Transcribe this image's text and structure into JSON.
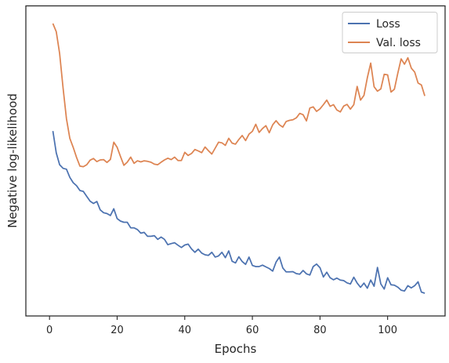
{
  "chart_data": {
    "type": "line",
    "title": "",
    "xlabel": "Epochs",
    "ylabel": "Negative log-likelihood",
    "xlim": [
      -7,
      117
    ],
    "ylim": [
      0,
      100
    ],
    "x_ticks": [
      0,
      20,
      40,
      60,
      80,
      100
    ],
    "y_ticks_shown": false,
    "grid": false,
    "legend_position": "top-right",
    "series": [
      {
        "name": "Loss",
        "color": "#4c72b0",
        "x": [
          1,
          2,
          3,
          4,
          5,
          6,
          7,
          8,
          9,
          10,
          11,
          12,
          13,
          14,
          15,
          16,
          17,
          18,
          19,
          20,
          21,
          22,
          23,
          24,
          25,
          26,
          27,
          28,
          29,
          30,
          31,
          32,
          33,
          34,
          35,
          36,
          37,
          38,
          39,
          40,
          41,
          42,
          43,
          44,
          45,
          46,
          47,
          48,
          49,
          50,
          51,
          52,
          53,
          54,
          55,
          56,
          57,
          58,
          59,
          60,
          61,
          62,
          63,
          64,
          65,
          66,
          67,
          68,
          69,
          70,
          71,
          72,
          73,
          74,
          75,
          76,
          77,
          78,
          79,
          80,
          81,
          82,
          83,
          84,
          85,
          86,
          87,
          88,
          89,
          90,
          91,
          92,
          93,
          94,
          95,
          96,
          97,
          98,
          99,
          100,
          101,
          102,
          103,
          104,
          105,
          106,
          107,
          108,
          109,
          110,
          111
        ],
        "values": [
          61.7,
          53.9,
          49.7,
          48.4,
          48.1,
          45.2,
          43.3,
          42.2,
          40.5,
          40.2,
          38.4,
          36.7,
          35.9,
          36.6,
          33.6,
          32.6,
          32.3,
          31.6,
          34.0,
          30.5,
          29.6,
          29.2,
          29.2,
          27.2,
          27.2,
          26.6,
          25.3,
          25.6,
          24.2,
          24.2,
          24.4,
          23.1,
          23.9,
          23.1,
          21.2,
          21.6,
          21.9,
          21.0,
          20.2,
          21.1,
          21.4,
          19.7,
          18.5,
          19.6,
          18.2,
          17.6,
          17.4,
          18.5,
          16.8,
          17.2,
          18.5,
          16.6,
          19.0,
          15.3,
          14.7,
          16.9,
          15.2,
          14.2,
          16.8,
          13.8,
          13.4,
          13.4,
          13.9,
          13.3,
          12.7,
          11.8,
          15.0,
          16.8,
          12.9,
          11.5,
          11.5,
          11.6,
          10.9,
          10.7,
          12.0,
          10.8,
          10.4,
          13.4,
          14.3,
          13.0,
          9.7,
          11.4,
          9.4,
          8.7,
          9.3,
          8.6,
          8.4,
          7.6,
          7.2,
          9.6,
          7.5,
          6.0,
          7.5,
          5.7,
          8.6,
          6.4,
          13.1,
          7.2,
          5.4,
          9.4,
          6.9,
          6.8,
          6.1,
          5.0,
          4.7,
          6.6,
          5.8,
          6.6,
          8.0,
          4.3,
          3.9
        ]
      },
      {
        "name": "Val. loss",
        "color": "#dd8452",
        "x": [
          1,
          2,
          3,
          4,
          5,
          6,
          7,
          8,
          9,
          10,
          11,
          12,
          13,
          14,
          15,
          16,
          17,
          18,
          19,
          20,
          21,
          22,
          23,
          24,
          25,
          26,
          27,
          28,
          29,
          30,
          31,
          32,
          33,
          34,
          35,
          36,
          37,
          38,
          39,
          40,
          41,
          42,
          43,
          44,
          45,
          46,
          47,
          48,
          49,
          50,
          51,
          52,
          53,
          54,
          55,
          56,
          57,
          58,
          59,
          60,
          61,
          62,
          63,
          64,
          65,
          66,
          67,
          68,
          69,
          70,
          71,
          72,
          73,
          74,
          75,
          76,
          77,
          78,
          79,
          80,
          81,
          82,
          83,
          84,
          85,
          86,
          87,
          88,
          89,
          90,
          91,
          92,
          93,
          94,
          95,
          96,
          97,
          98,
          99,
          100,
          101,
          102,
          103,
          104,
          105,
          106,
          107,
          108,
          109,
          110,
          111
        ],
        "values": [
          100.0,
          97.1,
          89.3,
          77.0,
          66.1,
          59.1,
          55.9,
          52.3,
          49.2,
          49.0,
          49.7,
          51.3,
          51.9,
          50.8,
          51.4,
          51.5,
          50.5,
          51.6,
          57.7,
          55.9,
          52.6,
          49.5,
          50.6,
          52.4,
          50.2,
          51.1,
          50.7,
          51.1,
          50.9,
          50.6,
          49.9,
          49.7,
          50.6,
          51.4,
          52.0,
          51.5,
          52.4,
          51.2,
          51.2,
          54.1,
          53.0,
          53.7,
          55.1,
          54.6,
          54.0,
          56.0,
          54.7,
          53.5,
          55.6,
          57.7,
          57.5,
          56.6,
          59.1,
          57.4,
          57.0,
          58.7,
          60.1,
          58.3,
          60.6,
          61.6,
          64.1,
          61.2,
          62.6,
          63.6,
          61.1,
          63.9,
          65.4,
          63.9,
          63.1,
          65.1,
          65.5,
          65.7,
          66.4,
          68.0,
          67.5,
          65.3,
          69.9,
          70.3,
          68.7,
          69.6,
          71.1,
          72.7,
          70.5,
          71.1,
          69.2,
          68.5,
          70.6,
          71.2,
          69.5,
          71.1,
          77.6,
          72.7,
          74.4,
          80.7,
          85.9,
          77.5,
          75.9,
          76.7,
          81.9,
          81.7,
          75.6,
          76.6,
          82.2,
          87.4,
          85.5,
          87.8,
          84.1,
          82.7,
          78.8,
          78.1,
          74.2
        ]
      }
    ]
  }
}
